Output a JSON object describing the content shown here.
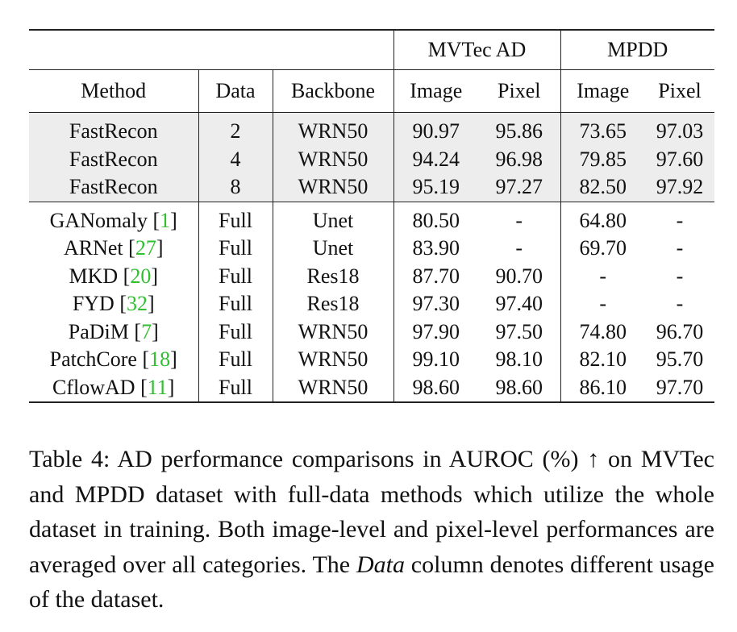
{
  "table": {
    "group_headers": [
      {
        "label": "MVTec AD",
        "span": 2
      },
      {
        "label": "MPDD",
        "span": 2
      }
    ],
    "columns": [
      "Method",
      "Data",
      "Backbone",
      "Image",
      "Pixel",
      "Image",
      "Pixel"
    ],
    "few_shot_rows": [
      {
        "method": "FastRecon",
        "ref": "",
        "data": "2",
        "backbone": "WRN50",
        "mv_image": "90.97",
        "mv_pixel": "95.86",
        "mp_image": "73.65",
        "mp_pixel": "97.03"
      },
      {
        "method": "FastRecon",
        "ref": "",
        "data": "4",
        "backbone": "WRN50",
        "mv_image": "94.24",
        "mv_pixel": "96.98",
        "mp_image": "79.85",
        "mp_pixel": "97.60"
      },
      {
        "method": "FastRecon",
        "ref": "",
        "data": "8",
        "backbone": "WRN50",
        "mv_image": "95.19",
        "mv_pixel": "97.27",
        "mp_image": "82.50",
        "mp_pixel": "97.92"
      }
    ],
    "full_rows": [
      {
        "method": "GANomaly",
        "ref": "1",
        "data": "Full",
        "backbone": "Unet",
        "mv_image": "80.50",
        "mv_pixel": "-",
        "mp_image": "64.80",
        "mp_pixel": "-"
      },
      {
        "method": "ARNet",
        "ref": "27",
        "data": "Full",
        "backbone": "Unet",
        "mv_image": "83.90",
        "mv_pixel": "-",
        "mp_image": "69.70",
        "mp_pixel": "-"
      },
      {
        "method": "MKD",
        "ref": "20",
        "data": "Full",
        "backbone": "Res18",
        "mv_image": "87.70",
        "mv_pixel": "90.70",
        "mp_image": "-",
        "mp_pixel": "-"
      },
      {
        "method": "FYD",
        "ref": "32",
        "data": "Full",
        "backbone": "Res18",
        "mv_image": "97.30",
        "mv_pixel": "97.40",
        "mp_image": "-",
        "mp_pixel": "-"
      },
      {
        "method": "PaDiM",
        "ref": "7",
        "data": "Full",
        "backbone": "WRN50",
        "mv_image": "97.90",
        "mv_pixel": "97.50",
        "mp_image": "74.80",
        "mp_pixel": "96.70"
      },
      {
        "method": "PatchCore",
        "ref": "18",
        "data": "Full",
        "backbone": "WRN50",
        "mv_image": "99.10",
        "mv_pixel": "98.10",
        "mp_image": "82.10",
        "mp_pixel": "95.70"
      },
      {
        "method": "CflowAD",
        "ref": "11",
        "data": "Full",
        "backbone": "WRN50",
        "mv_image": "98.60",
        "mv_pixel": "98.60",
        "mp_image": "86.10",
        "mp_pixel": "97.70"
      }
    ],
    "ref_color": "#2fbf2f",
    "shade_color": "#ededed"
  },
  "caption": {
    "lead": "Table 4: AD performance comparisons in AUROC (%) ↑ on MVTec and MPDD dataset with full-data methods which utilize the whole dataset in training. Both image-level and pixel-level performances are averaged over all categories. The ",
    "italic": "Data",
    "tail": " column denotes different usage of the dataset."
  }
}
